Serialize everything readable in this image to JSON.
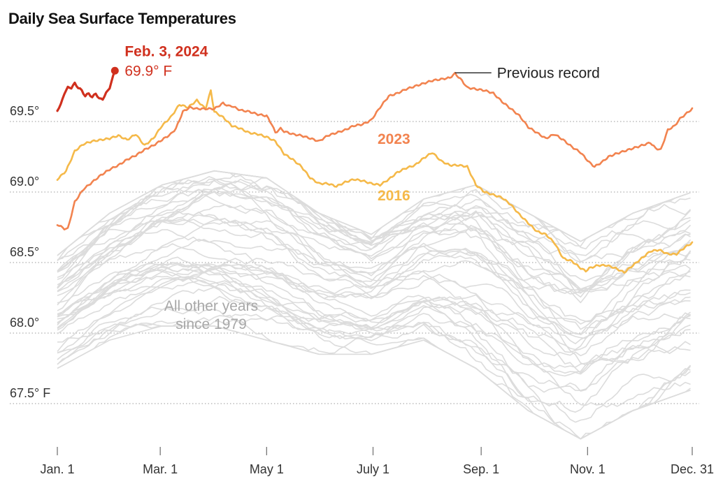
{
  "chart_data": {
    "type": "line",
    "title": "Daily Sea Surface Temperatures",
    "xlabel": "",
    "ylabel": "",
    "ylim": [
      67.3,
      70.05
    ],
    "xlim_days": [
      0,
      364
    ],
    "grid": true,
    "y_ticks": [
      {
        "value": 69.5,
        "label": "69.5°"
      },
      {
        "value": 69.0,
        "label": "69.0°"
      },
      {
        "value": 68.5,
        "label": "68.5°"
      },
      {
        "value": 68.0,
        "label": "68.0°"
      },
      {
        "value": 67.5,
        "label": "67.5° F"
      }
    ],
    "x_ticks": [
      {
        "day": 0,
        "label": "Jan. 1"
      },
      {
        "day": 59,
        "label": "Mar. 1"
      },
      {
        "day": 120,
        "label": "May 1"
      },
      {
        "day": 181,
        "label": "July 1"
      },
      {
        "day": 243,
        "label": "Sep. 1"
      },
      {
        "day": 304,
        "label": "Nov. 1"
      },
      {
        "day": 364,
        "label": "Dec. 31"
      }
    ],
    "colors": {
      "y2024": "#d0301e",
      "y2023": "#f2834f",
      "y2016": "#f5b949",
      "other": "#dcdcdc",
      "annotation_line": "#222222"
    },
    "series": [
      {
        "name": "2024",
        "day": [
          0,
          2,
          4,
          6,
          8,
          10,
          12,
          14,
          16,
          18,
          20,
          22,
          24,
          26,
          28,
          30,
          32,
          33
        ],
        "values": [
          69.58,
          69.62,
          69.7,
          69.74,
          69.74,
          69.77,
          69.74,
          69.72,
          69.68,
          69.7,
          69.67,
          69.7,
          69.66,
          69.66,
          69.7,
          69.74,
          69.82,
          69.86
        ]
      },
      {
        "name": "2023",
        "day": [
          0,
          4,
          6,
          10,
          15,
          20,
          25,
          30,
          35,
          40,
          45,
          50,
          55,
          60,
          65,
          68,
          72,
          76,
          80,
          85,
          90,
          95,
          98,
          100,
          105,
          110,
          115,
          120,
          123,
          125,
          128,
          130,
          135,
          140,
          145,
          150,
          155,
          160,
          165,
          170,
          175,
          180,
          185,
          190,
          195,
          200,
          205,
          210,
          215,
          220,
          225,
          228,
          232,
          235,
          240,
          245,
          250,
          255,
          260,
          265,
          270,
          275,
          280,
          285,
          290,
          295,
          300,
          305,
          308,
          312,
          316,
          320,
          325,
          330,
          335,
          340,
          343,
          346,
          350,
          354,
          357,
          360,
          364
        ],
        "values": [
          68.77,
          68.74,
          68.74,
          68.93,
          69.02,
          69.07,
          69.12,
          69.16,
          69.19,
          69.23,
          69.26,
          69.3,
          69.33,
          69.37,
          69.41,
          69.45,
          69.57,
          69.6,
          69.59,
          69.59,
          69.59,
          69.63,
          69.61,
          69.61,
          69.58,
          69.57,
          69.55,
          69.54,
          69.48,
          69.42,
          69.45,
          69.43,
          69.41,
          69.4,
          69.38,
          69.36,
          69.4,
          69.42,
          69.44,
          69.47,
          69.48,
          69.51,
          69.6,
          69.68,
          69.7,
          69.73,
          69.75,
          69.77,
          69.79,
          69.8,
          69.81,
          69.84,
          69.79,
          69.74,
          69.73,
          69.72,
          69.7,
          69.64,
          69.59,
          69.54,
          69.46,
          69.42,
          69.38,
          69.41,
          69.37,
          69.32,
          69.28,
          69.21,
          69.18,
          69.21,
          69.25,
          69.27,
          69.29,
          69.31,
          69.33,
          69.35,
          69.31,
          69.3,
          69.44,
          69.47,
          69.52,
          69.55,
          69.59
        ]
      },
      {
        "name": "2016",
        "day": [
          0,
          5,
          10,
          15,
          20,
          25,
          30,
          35,
          40,
          45,
          50,
          55,
          60,
          65,
          70,
          75,
          80,
          85,
          88,
          90,
          95,
          100,
          105,
          110,
          115,
          120,
          125,
          130,
          135,
          140,
          145,
          150,
          155,
          160,
          165,
          170,
          175,
          180,
          185,
          190,
          195,
          200,
          205,
          210,
          215,
          220,
          225,
          230,
          235,
          240,
          245,
          250,
          255,
          260,
          265,
          270,
          275,
          280,
          285,
          290,
          295,
          300,
          303,
          305,
          310,
          315,
          320,
          325,
          330,
          335,
          340,
          345,
          350,
          355,
          360,
          364
        ],
        "values": [
          69.09,
          69.15,
          69.29,
          69.34,
          69.36,
          69.37,
          69.38,
          69.4,
          69.37,
          69.41,
          69.33,
          69.38,
          69.47,
          69.53,
          69.62,
          69.6,
          69.65,
          69.59,
          69.72,
          69.57,
          69.53,
          69.47,
          69.45,
          69.42,
          69.41,
          69.39,
          69.36,
          69.27,
          69.23,
          69.18,
          69.1,
          69.06,
          69.06,
          69.04,
          69.07,
          69.09,
          69.08,
          69.06,
          69.05,
          69.09,
          69.14,
          69.17,
          69.19,
          69.24,
          69.28,
          69.22,
          69.19,
          69.19,
          69.18,
          69.05,
          69.0,
          68.98,
          68.96,
          68.91,
          68.84,
          68.78,
          68.72,
          68.7,
          68.64,
          68.53,
          68.51,
          68.46,
          68.44,
          68.46,
          68.48,
          68.48,
          68.46,
          68.43,
          68.48,
          68.53,
          68.58,
          68.59,
          68.56,
          68.56,
          68.61,
          68.64
        ]
      }
    ],
    "other_years": {
      "name": "All other years since 1979",
      "count": 44,
      "day": [
        0,
        30,
        60,
        90,
        120,
        150,
        180,
        210,
        240,
        270,
        300,
        330,
        364
      ],
      "envelope_low": [
        67.75,
        67.95,
        68.05,
        68.05,
        67.95,
        67.85,
        67.85,
        67.95,
        67.75,
        67.45,
        67.25,
        67.45,
        67.6
      ],
      "envelope_high": [
        68.55,
        68.85,
        69.05,
        69.15,
        69.1,
        68.85,
        68.7,
        68.95,
        69.05,
        68.85,
        68.65,
        68.85,
        69.0
      ]
    },
    "annotations": [
      {
        "id": "latest",
        "line1": "Feb. 3, 2024",
        "line2": "69.9° F",
        "day": 33,
        "value": 69.86
      },
      {
        "id": "previous-record",
        "text": "Previous record",
        "day": 228,
        "value": 69.84
      },
      {
        "id": "label-2023",
        "text": "2023"
      },
      {
        "id": "label-2016",
        "text": "2016"
      },
      {
        "id": "label-other",
        "line1": "All other years",
        "line2": "since 1979"
      }
    ]
  }
}
